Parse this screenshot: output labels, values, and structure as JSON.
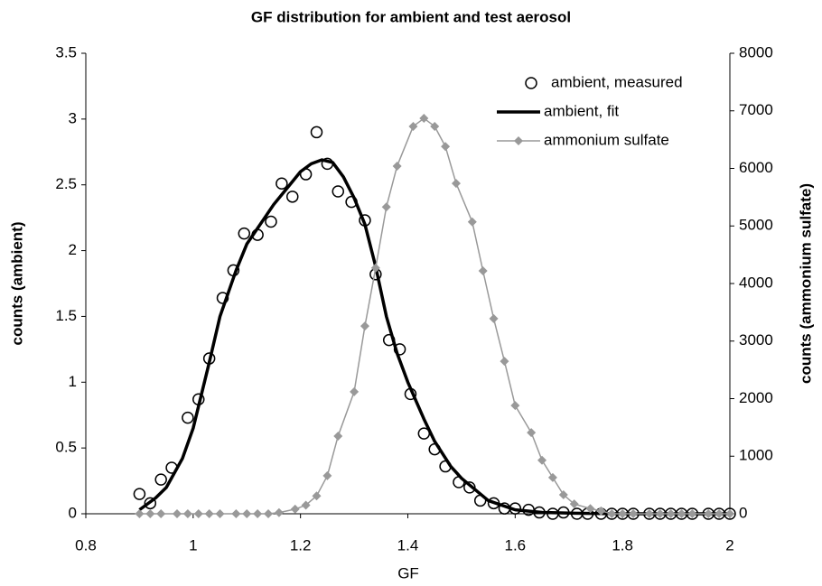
{
  "chart_data": {
    "type": "scatter",
    "title": "GF distribution for ambient and test aerosol",
    "x_label": "GF",
    "y_label": "counts (ambient)",
    "y2_label": "counts (ammonium sulfate)",
    "xlim": [
      0.8,
      2
    ],
    "xticks": [
      0.8,
      1,
      1.2,
      1.4,
      1.6,
      1.8,
      2
    ],
    "ylim": [
      0,
      3.5
    ],
    "yticks": [
      0,
      0.5,
      1,
      1.5,
      2,
      2.5,
      3,
      3.5
    ],
    "y2lim": [
      0,
      8000
    ],
    "y2ticks": [
      0,
      1000,
      2000,
      3000,
      4000,
      5000,
      6000,
      7000,
      8000
    ],
    "grid": false,
    "legend": "top-right",
    "series": [
      {
        "name": "ambient, measured",
        "color": "#000000",
        "line": false,
        "marker": "circle",
        "x": [
          0.9,
          0.92,
          0.94,
          0.96,
          0.99,
          1.01,
          1.03,
          1.055,
          1.075,
          1.095,
          1.12,
          1.145,
          1.165,
          1.185,
          1.21,
          1.23,
          1.25,
          1.27,
          1.295,
          1.32,
          1.34,
          1.365,
          1.385,
          1.405,
          1.43,
          1.45,
          1.47,
          1.495,
          1.515,
          1.535,
          1.56,
          1.58,
          1.6,
          1.625,
          1.645,
          1.67,
          1.69,
          1.715,
          1.735,
          1.76,
          1.78,
          1.8,
          1.82,
          1.85,
          1.87,
          1.89,
          1.91,
          1.93,
          1.96,
          1.98,
          2.0
        ],
        "values": [
          0.15,
          0.08,
          0.26,
          0.35,
          0.73,
          0.87,
          1.18,
          1.64,
          1.85,
          2.13,
          2.12,
          2.22,
          2.51,
          2.41,
          2.58,
          2.9,
          2.66,
          2.45,
          2.37,
          2.23,
          1.82,
          1.32,
          1.25,
          0.91,
          0.61,
          0.49,
          0.36,
          0.24,
          0.2,
          0.1,
          0.08,
          0.04,
          0.04,
          0.03,
          0.01,
          0,
          0.01,
          0,
          0,
          0,
          0,
          0,
          0,
          0,
          0,
          0,
          0,
          0,
          0,
          0,
          0
        ]
      },
      {
        "name": "ambient, fit",
        "color": "#000000",
        "line": true,
        "x": [
          0.9,
          0.93,
          0.95,
          0.98,
          1.0,
          1.03,
          1.05,
          1.08,
          1.1,
          1.13,
          1.15,
          1.18,
          1.2,
          1.22,
          1.24,
          1.26,
          1.28,
          1.3,
          1.32,
          1.34,
          1.36,
          1.38,
          1.4,
          1.43,
          1.45,
          1.48,
          1.5,
          1.55,
          1.6,
          1.65,
          1.7,
          1.8,
          1.9,
          2.0
        ],
        "values": [
          0.03,
          0.12,
          0.2,
          0.42,
          0.65,
          1.15,
          1.5,
          1.85,
          2.05,
          2.23,
          2.35,
          2.5,
          2.6,
          2.66,
          2.69,
          2.67,
          2.56,
          2.4,
          2.2,
          1.88,
          1.5,
          1.22,
          1.0,
          0.72,
          0.55,
          0.36,
          0.27,
          0.1,
          0.03,
          0.01,
          0.005,
          0,
          0,
          0
        ]
      },
      {
        "name": "ammonium sulfate",
        "color": "#999999",
        "line": true,
        "marker": "diamond",
        "axis": "y2",
        "x": [
          0.9,
          0.92,
          0.94,
          0.97,
          0.99,
          1.01,
          1.03,
          1.05,
          1.08,
          1.1,
          1.12,
          1.14,
          1.16,
          1.19,
          1.21,
          1.23,
          1.25,
          1.27,
          1.3,
          1.32,
          1.34,
          1.36,
          1.38,
          1.41,
          1.43,
          1.45,
          1.47,
          1.49,
          1.52,
          1.54,
          1.56,
          1.58,
          1.6,
          1.63,
          1.65,
          1.67,
          1.69,
          1.71,
          1.74,
          1.76,
          1.78,
          1.8,
          1.82,
          1.85,
          1.87,
          1.89,
          1.91,
          1.93,
          1.96,
          1.98,
          2.0
        ],
        "values": [
          0,
          0,
          0,
          0,
          0,
          0,
          0,
          0,
          0,
          0,
          0,
          0,
          20,
          80,
          150,
          310,
          660,
          1350,
          2120,
          3260,
          4270,
          5330,
          6040,
          6730,
          6870,
          6730,
          6380,
          5740,
          5070,
          4220,
          3390,
          2650,
          1880,
          1410,
          930,
          630,
          330,
          170,
          90,
          50,
          0,
          0,
          0,
          0,
          0,
          0,
          0,
          0,
          0,
          0,
          0
        ]
      }
    ]
  }
}
